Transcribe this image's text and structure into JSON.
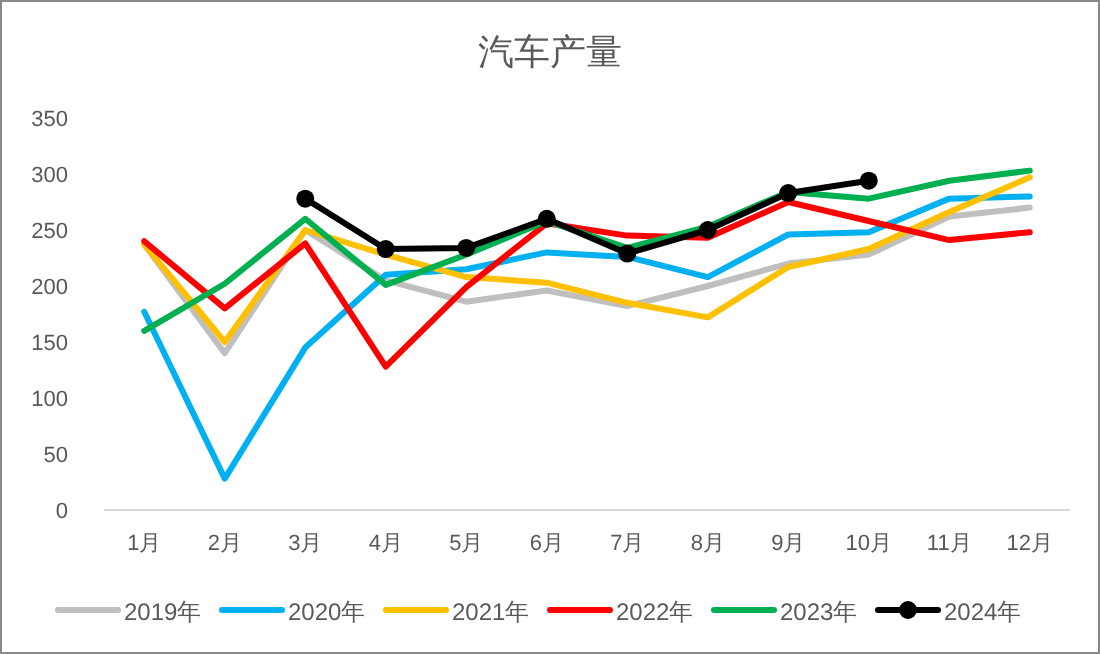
{
  "chart_data": {
    "type": "line",
    "title": "汽车产量",
    "categories": [
      "1月",
      "2月",
      "3月",
      "4月",
      "5月",
      "6月",
      "7月",
      "8月",
      "9月",
      "10月",
      "11月",
      "12月"
    ],
    "ylim": [
      0,
      350
    ],
    "yticks": [
      0,
      50,
      100,
      150,
      200,
      250,
      300,
      350
    ],
    "grid": false,
    "legend": "bottom",
    "marker": "none",
    "series": [
      {
        "name": "2019年",
        "color": "#bfbfbf",
        "values": [
          237,
          140,
          250,
          205,
          186,
          196,
          182,
          200,
          220,
          228,
          262,
          270
        ]
      },
      {
        "name": "2020年",
        "color": "#00b0f0",
        "values": [
          177,
          28,
          145,
          210,
          215,
          230,
          226,
          208,
          246,
          248,
          278,
          280
        ]
      },
      {
        "name": "2021年",
        "color": "#ffc000",
        "values": [
          237,
          150,
          250,
          228,
          208,
          203,
          185,
          172,
          217,
          233,
          266,
          297
        ]
      },
      {
        "name": "2022年",
        "color": "#ff0000",
        "values": [
          240,
          180,
          238,
          128,
          199,
          256,
          245,
          243,
          275,
          258,
          241,
          248
        ]
      },
      {
        "name": "2023年",
        "color": "#00b050",
        "values": [
          160,
          202,
          260,
          201,
          228,
          258,
          234,
          253,
          284,
          278,
          294,
          303
        ]
      },
      {
        "name": "2024年",
        "color": "#000000",
        "marker": "circle",
        "values": [
          null,
          null,
          278,
          233,
          234,
          260,
          229,
          250,
          283,
          294,
          null,
          null
        ]
      }
    ]
  }
}
